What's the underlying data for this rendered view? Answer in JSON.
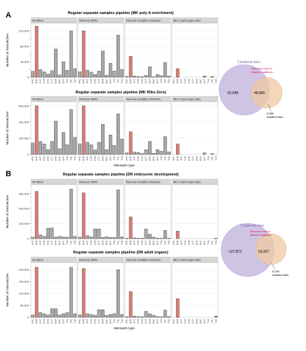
{
  "panels": [
    {
      "letter": "A"
    },
    {
      "letter": "B"
    }
  ],
  "venns": [
    {
      "title": "Clustered sites",
      "highlight": "Removed due to\nshared mutations",
      "left_value": "63,048",
      "overlap_value": "48,840",
      "callout": "6,389\nisolated sites"
    },
    {
      "title": "Clustered sites",
      "highlight": "Removed due to\nshared mutations",
      "left_value": "137,873",
      "overlap_value": "53,427",
      "callout": "6,195\nisolated sites"
    }
  ],
  "chart_data": [
    {
      "type": "bar",
      "title": "Regular separate samples pipeline (MK poly-A enrichment)",
      "ylabel": "Number of mismatches",
      "xlabel": "",
      "ylim": [
        0,
        140000
      ],
      "yticks": [
        0,
        20000,
        40000,
        60000,
        80000,
        100000,
        120000
      ],
      "ytick_labels": [
        "0",
        "",
        "40,000",
        "",
        "80,000",
        "",
        "120,000"
      ],
      "facets": [
        {
          "name": "No filters",
          "values": [
            15000,
            132000,
            20000,
            14000,
            8000,
            17000,
            73000,
            6000,
            40000,
            18000,
            120000,
            22000
          ]
        },
        {
          "name": "Remove SNPs",
          "values": [
            14000,
            120000,
            18000,
            13000,
            7000,
            16000,
            68000,
            5000,
            36000,
            16000,
            109000,
            20000
          ]
        },
        {
          "name": "Remove mutation stretches",
          "values": [
            2000,
            54000,
            3000,
            2000,
            1000,
            5000,
            27000,
            1000,
            7000,
            4000,
            38000,
            3000
          ]
        },
        {
          "name": "Min 2 same-type sites",
          "values": [
            0,
            22000,
            0,
            0,
            0,
            0,
            0,
            0,
            3000,
            0,
            2000,
            0
          ]
        }
      ],
      "highlight_index": 1
    },
    {
      "type": "bar",
      "title": "Regular separate samples pipeline (MK Ribo-Zero)",
      "ylabel": "Number of mismatches",
      "xlabel": "Mismatch type",
      "ylim": [
        0,
        650000
      ],
      "yticks": [
        0,
        200000,
        400000,
        600000
      ],
      "ytick_labels": [
        "0",
        "200,000",
        "400,000",
        "600,000"
      ],
      "facets": [
        {
          "name": "No filters",
          "values": [
            140000,
            600000,
            160000,
            130000,
            60000,
            160000,
            410000,
            70000,
            270000,
            120000,
            555000,
            210000
          ]
        },
        {
          "name": "Remove SNPs",
          "values": [
            130000,
            600000,
            150000,
            120000,
            55000,
            150000,
            370000,
            60000,
            240000,
            110000,
            500000,
            190000
          ]
        },
        {
          "name": "Remove mutation stretches",
          "values": [
            20000,
            280000,
            30000,
            25000,
            10000,
            60000,
            160000,
            15000,
            60000,
            40000,
            220000,
            30000
          ]
        },
        {
          "name": "Min 2 same-type sites",
          "values": [
            0,
            130000,
            0,
            0,
            0,
            0,
            0,
            0,
            20000,
            0,
            10000,
            0
          ]
        }
      ],
      "highlight_index": 1
    },
    {
      "type": "bar",
      "title": "Regular separate samples pipeline (DR embryonic development)",
      "ylabel": "Number of mismatches",
      "xlabel": "",
      "ylim": [
        0,
        360000
      ],
      "yticks": [
        0,
        100000,
        200000,
        300000
      ],
      "ytick_labels": [
        "0",
        "100,000",
        "200,000",
        "300,000"
      ],
      "facets": [
        {
          "name": "No filters",
          "values": [
            10000,
            315000,
            25000,
            15000,
            70000,
            72000,
            10000,
            15000,
            10000,
            10000,
            330000,
            15000
          ]
        },
        {
          "name": "Remove SNPs",
          "values": [
            10000,
            305000,
            20000,
            12000,
            65000,
            65000,
            8000,
            12000,
            8000,
            8000,
            325000,
            12000
          ]
        },
        {
          "name": "Remove mutation stretches",
          "values": [
            2000,
            145000,
            5000,
            3000,
            2000,
            65000,
            30000,
            10000,
            3000,
            2000,
            55000,
            3000
          ]
        },
        {
          "name": "Min 2 same-type sites",
          "values": [
            0,
            50000,
            0,
            0,
            0,
            0,
            0,
            0,
            0,
            0,
            0,
            3000
          ]
        }
      ],
      "highlight_index": 1
    },
    {
      "type": "bar",
      "title": "Regular separate samples pipeline (DR adult organs)",
      "ylabel": "Number of mismatches",
      "xlabel": "Mismatch type",
      "ylim": [
        0,
        230000
      ],
      "yticks": [
        0,
        50000,
        100000,
        150000,
        200000
      ],
      "ytick_labels": [
        "0",
        "50,000",
        "100,000",
        "150,000",
        "200,000"
      ],
      "facets": [
        {
          "name": "No filters",
          "values": [
            10000,
            210000,
            20000,
            15000,
            10000,
            36000,
            36000,
            10000,
            15000,
            20000,
            210000,
            15000
          ]
        },
        {
          "name": "Remove SNPs",
          "values": [
            10000,
            205000,
            15000,
            12000,
            8000,
            32000,
            32000,
            8000,
            12000,
            15000,
            200000,
            12000
          ]
        },
        {
          "name": "Remove mutation stretches",
          "values": [
            2000,
            108000,
            5000,
            3000,
            2000,
            25000,
            15000,
            8000,
            3000,
            2000,
            30000,
            3000
          ]
        },
        {
          "name": "Min 2 same-type sites",
          "values": [
            0,
            78000,
            0,
            0,
            0,
            0,
            0,
            0,
            0,
            0,
            0,
            5000
          ]
        }
      ],
      "highlight_index": 1
    }
  ],
  "categories": [
    "A>C",
    "A>G",
    "A>T",
    "C>A",
    "C>G",
    "C>T",
    "G>A",
    "G>C",
    "G>T",
    "T>A",
    "T>C",
    "T>G"
  ],
  "colors": {
    "bar_gray": "#a9a9a9",
    "bar_highlight": "#e07b70",
    "bar_stroke": "#1a1a1a",
    "facet_header": "#d6d6d6",
    "grid": "#e4e4e4",
    "venn_left": "#cfc4e4",
    "venn_right": "#f7d9b5",
    "venn_overlap": "#e9c2a8",
    "venn_title": "#7a6aa8",
    "venn_highlight": "#c2185b"
  }
}
